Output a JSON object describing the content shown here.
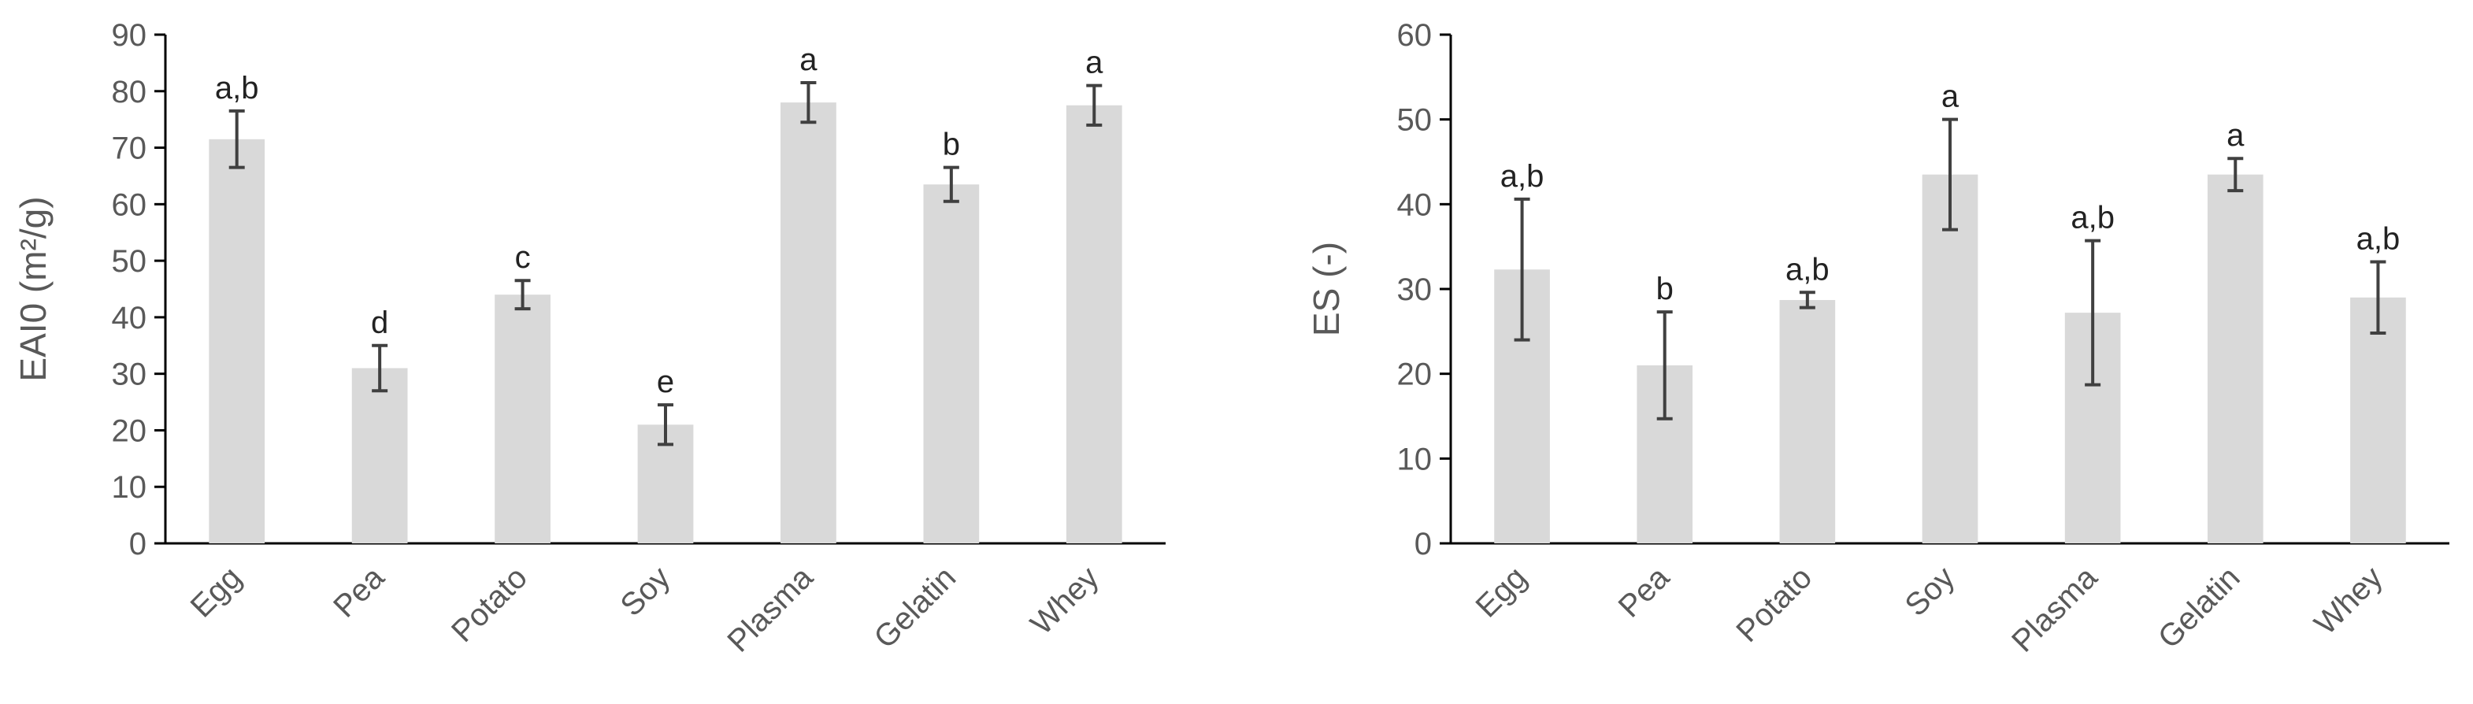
{
  "style": {
    "bar_color": "#d9d9d9",
    "axis_color": "#000000",
    "text_color": "#595959",
    "error_bar_color": "#404040",
    "letter_color": "#222222"
  },
  "chart_data": [
    {
      "type": "bar",
      "ylabel": "EAI0 (m²/g)",
      "ylim": [
        0,
        90
      ],
      "yticks": [
        "0",
        "10",
        "20",
        "30",
        "40",
        "50",
        "60",
        "70",
        "80",
        "90"
      ],
      "grid": false,
      "categories": [
        "Egg",
        "Pea",
        "Potato",
        "Soy",
        "Plasma",
        "Gelatin",
        "Whey"
      ],
      "values": [
        71.5,
        31,
        44,
        21,
        78,
        63.5,
        77.5
      ],
      "errors": [
        5,
        4,
        2.5,
        3.5,
        3.5,
        3,
        3.5
      ],
      "letters": [
        "a,b",
        "d",
        "c",
        "e",
        "a",
        "b",
        "a"
      ]
    },
    {
      "type": "bar",
      "ylabel": "ES (-)",
      "ylim": [
        0,
        60
      ],
      "yticks": [
        "0",
        "10",
        "20",
        "30",
        "40",
        "50",
        "60"
      ],
      "grid": false,
      "categories": [
        "Egg",
        "Pea",
        "Potato",
        "Soy",
        "Plasma",
        "Gelatin",
        "Whey"
      ],
      "values": [
        32.3,
        21,
        28.7,
        43.5,
        27.2,
        43.5,
        29
      ],
      "errors": [
        8.3,
        6.3,
        0.9,
        6.5,
        8.5,
        1.9,
        4.2
      ],
      "letters": [
        "a,b",
        "b",
        "a,b",
        "a",
        "a,b",
        "a",
        "a,b"
      ]
    }
  ]
}
